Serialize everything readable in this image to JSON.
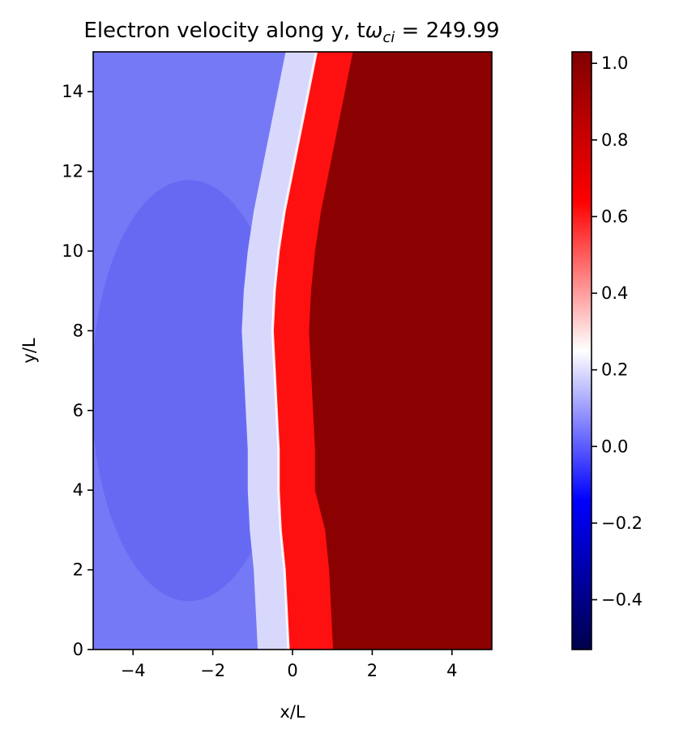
{
  "chart_data": {
    "type": "heatmap",
    "title_main": "Electron velocity along y, t",
    "title_symbol": "ω",
    "title_subscript": "ci",
    "title_value": " = 249.99",
    "xlabel": "x/L",
    "ylabel": "y/L",
    "xlim": [
      -5,
      5
    ],
    "ylim": [
      0,
      15
    ],
    "x_ticks": [
      -4,
      -2,
      0,
      2,
      4
    ],
    "x_tick_labels": [
      "−4",
      "−2",
      "0",
      "2",
      "4"
    ],
    "y_ticks": [
      0,
      2,
      4,
      6,
      8,
      10,
      12,
      14
    ],
    "y_tick_labels": [
      "0",
      "2",
      "4",
      "6",
      "8",
      "10",
      "12",
      "14"
    ],
    "grid": false,
    "colormap": "seismic",
    "colorbar": {
      "range": [
        -0.53,
        1.03
      ],
      "ticks": [
        -0.4,
        -0.2,
        0.0,
        0.2,
        0.4,
        0.6,
        0.8,
        1.0
      ],
      "tick_labels": [
        "−0.4",
        "−0.2",
        "0.0",
        "0.2",
        "0.4",
        "0.6",
        "0.8",
        "1.0"
      ]
    },
    "field": {
      "left_value": 0.03,
      "right_value": 1.0,
      "front_curve": [
        {
          "y": 0.0,
          "x": -0.1
        },
        {
          "y": 1.0,
          "x": -0.15
        },
        {
          "y": 2.0,
          "x": -0.2
        },
        {
          "y": 3.0,
          "x": -0.3
        },
        {
          "y": 4.0,
          "x": -0.35
        },
        {
          "y": 5.0,
          "x": -0.35
        },
        {
          "y": 6.0,
          "x": -0.4
        },
        {
          "y": 7.0,
          "x": -0.45
        },
        {
          "y": 8.0,
          "x": -0.5
        },
        {
          "y": 9.0,
          "x": -0.45
        },
        {
          "y": 10.0,
          "x": -0.35
        },
        {
          "y": 11.0,
          "x": -0.2
        },
        {
          "y": 12.0,
          "x": 0.0
        },
        {
          "y": 13.0,
          "x": 0.2
        },
        {
          "y": 14.0,
          "x": 0.4
        },
        {
          "y": 15.0,
          "x": 0.6
        }
      ]
    }
  }
}
